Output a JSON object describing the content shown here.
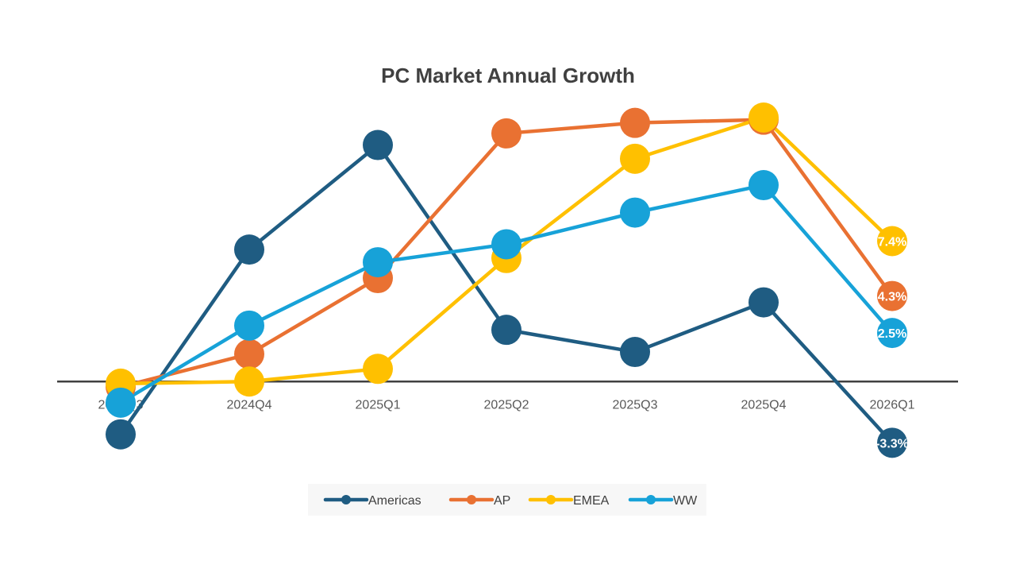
{
  "chart_data": {
    "type": "line",
    "title": "PC Market Annual Growth",
    "categories": [
      "2024Q3",
      "2024Q4",
      "2025Q1",
      "2025Q2",
      "2025Q3",
      "2025Q4",
      "2026Q1"
    ],
    "ylim": [
      -6,
      25
    ],
    "grid": false,
    "legend_position": "bottom",
    "series": [
      {
        "name": "Americas",
        "color": "#1F5C82",
        "values": [
          -5.0,
          12.5,
          22.4,
          4.9,
          2.8,
          7.5,
          -5.8
        ],
        "end_label": "-3.3%"
      },
      {
        "name": "AP",
        "color": "#E97132",
        "values": [
          -0.5,
          2.6,
          9.8,
          23.5,
          24.5,
          24.8,
          8.1
        ],
        "end_label": "4.3%"
      },
      {
        "name": "EMEA",
        "color": "#FFC000",
        "values": [
          -0.2,
          0.0,
          1.2,
          11.7,
          21.1,
          25.0,
          13.3
        ],
        "end_label": "7.4%"
      },
      {
        "name": "WW",
        "color": "#17A2D8",
        "values": [
          -2.0,
          5.3,
          11.3,
          13.0,
          16.0,
          18.6,
          4.6
        ],
        "end_label": "2.5%"
      }
    ]
  }
}
